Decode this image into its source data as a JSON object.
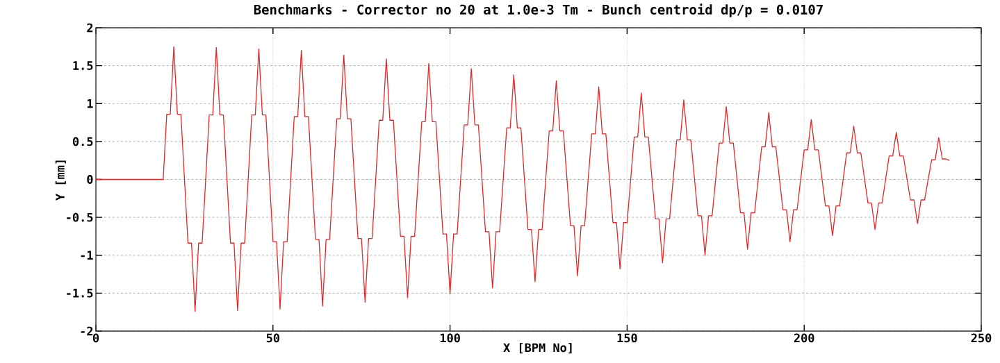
{
  "chart_data": {
    "type": "line",
    "title": "Benchmarks - Corrector no 20 at 1.0e-3 Tm - Bunch centroid dp/p = 0.0107",
    "xlabel": "X [BPM No]",
    "ylabel": "Y [mm]",
    "x": [
      0,
      19,
      20,
      21,
      22,
      23,
      24,
      26,
      27,
      28,
      29,
      30,
      32,
      33,
      34,
      35,
      36,
      38,
      39,
      40,
      41,
      42,
      44,
      45,
      46,
      47,
      48,
      50,
      51,
      52,
      53,
      54,
      56,
      57,
      58,
      59,
      60,
      62,
      63,
      64,
      65,
      66,
      68,
      69,
      70,
      71,
      72,
      74,
      75,
      76,
      77,
      78,
      80,
      81,
      82,
      83,
      84,
      86,
      87,
      88,
      89,
      90,
      92,
      93,
      94,
      95,
      96,
      98,
      99,
      100,
      101,
      102,
      104,
      105,
      106,
      107,
      108,
      110,
      111,
      112,
      113,
      114,
      116,
      117,
      118,
      119,
      120,
      122,
      123,
      124,
      125,
      126,
      128,
      129,
      130,
      131,
      132,
      134,
      135,
      136,
      137,
      138,
      140,
      141,
      142,
      143,
      144,
      146,
      147,
      148,
      149,
      150,
      152,
      153,
      154,
      155,
      156,
      158,
      159,
      160,
      161,
      162,
      164,
      165,
      166,
      167,
      168,
      170,
      171,
      172,
      173,
      174,
      176,
      177,
      178,
      179,
      180,
      182,
      183,
      184,
      185,
      186,
      188,
      189,
      190,
      191,
      192,
      194,
      195,
      196,
      197,
      198,
      200,
      201,
      202,
      203,
      204,
      206,
      207,
      208,
      209,
      210,
      212,
      213,
      214,
      215,
      216,
      218,
      219,
      220,
      221,
      222,
      224,
      225,
      226,
      227,
      228,
      230,
      231,
      232,
      233,
      234,
      236,
      237,
      238,
      239,
      240,
      241
    ],
    "series": [
      {
        "color": "#e02828",
        "values": [
          0,
          0,
          0.86,
          0.86,
          1.75,
          0.86,
          0.86,
          -0.84,
          -0.84,
          -1.74,
          -0.84,
          -0.84,
          0.85,
          0.85,
          1.74,
          0.85,
          0.85,
          -0.84,
          -0.84,
          -1.73,
          -0.84,
          -0.84,
          0.85,
          0.85,
          1.72,
          0.85,
          0.85,
          -0.82,
          -0.82,
          -1.71,
          -0.82,
          -0.82,
          0.83,
          0.83,
          1.7,
          0.83,
          0.83,
          -0.79,
          -0.79,
          -1.67,
          -0.79,
          -0.79,
          0.8,
          0.8,
          1.64,
          0.8,
          0.8,
          -0.78,
          -0.78,
          -1.62,
          -0.78,
          -0.78,
          0.78,
          0.78,
          1.59,
          0.78,
          0.78,
          -0.75,
          -0.75,
          -1.56,
          -0.75,
          -0.75,
          0.76,
          0.76,
          1.53,
          0.76,
          0.76,
          -0.72,
          -0.72,
          -1.51,
          -0.72,
          -0.72,
          0.72,
          0.72,
          1.46,
          0.72,
          0.72,
          -0.69,
          -0.69,
          -1.43,
          -0.69,
          -0.69,
          0.68,
          0.68,
          1.38,
          0.68,
          0.68,
          -0.66,
          -0.66,
          -1.35,
          -0.66,
          -0.66,
          0.64,
          0.64,
          1.3,
          0.64,
          0.64,
          -0.61,
          -0.61,
          -1.27,
          -0.61,
          -0.61,
          0.6,
          0.6,
          1.22,
          0.6,
          0.6,
          -0.57,
          -0.57,
          -1.18,
          -0.57,
          -0.57,
          0.56,
          0.56,
          1.14,
          0.56,
          0.56,
          -0.52,
          -0.52,
          -1.1,
          -0.52,
          -0.52,
          0.52,
          0.52,
          1.05,
          0.52,
          0.52,
          -0.48,
          -0.48,
          -1.0,
          -0.48,
          -0.48,
          0.48,
          0.48,
          0.96,
          0.48,
          0.48,
          -0.44,
          -0.44,
          -0.92,
          -0.44,
          -0.44,
          0.43,
          0.43,
          0.88,
          0.43,
          0.43,
          -0.4,
          -0.4,
          -0.82,
          -0.4,
          -0.4,
          0.39,
          0.39,
          0.79,
          0.39,
          0.39,
          -0.35,
          -0.35,
          -0.74,
          -0.35,
          -0.35,
          0.35,
          0.35,
          0.7,
          0.35,
          0.35,
          -0.31,
          -0.31,
          -0.66,
          -0.31,
          -0.31,
          0.31,
          0.31,
          0.62,
          0.31,
          0.31,
          -0.27,
          -0.27,
          -0.58,
          -0.27,
          -0.27,
          0.26,
          0.26,
          0.55,
          0.27,
          0.27,
          0.25
        ]
      }
    ],
    "xlim": [
      0,
      250
    ],
    "ylim": [
      -2,
      2
    ],
    "xticks": [
      0,
      50,
      100,
      150,
      200,
      250
    ],
    "yticks": [
      -2,
      -1.5,
      -1,
      -0.5,
      0,
      0.5,
      1,
      1.5,
      2
    ],
    "grid": true
  }
}
